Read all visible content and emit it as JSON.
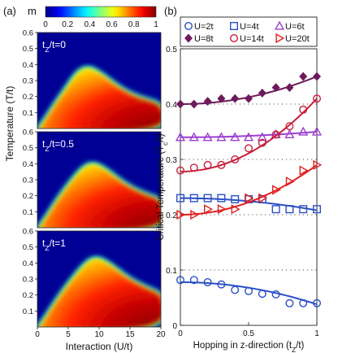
{
  "figure": {
    "panel_a_label": "(a)",
    "panel_b_label": "(b)",
    "colorbar": {
      "label": "m",
      "ticks": [
        "0",
        "0.2",
        "0.4",
        "0.6",
        "0.8",
        "1"
      ],
      "range": [
        0,
        1
      ],
      "colormap": "jet"
    },
    "left_ylabel": "Temperature (T/t)",
    "left_xlabel": "Interaction (U/t)",
    "left_yticks": [
      "0.1",
      "0.2",
      "0.3",
      "0.4",
      "0.5",
      "0.6"
    ],
    "left_xticks": [
      "0",
      "5",
      "10",
      "15",
      "20"
    ],
    "heatmap_panels": [
      {
        "label": "t",
        "sub": "Z",
        "rest": "/t=0",
        "peak_u": 8.2,
        "peak_t": 0.38
      },
      {
        "label": "t",
        "sub": "Z",
        "rest": "/t=0.5",
        "peak_u": 9.0,
        "peak_t": 0.4
      },
      {
        "label": "t",
        "sub": "Z",
        "rest": "/t=1",
        "peak_u": 9.6,
        "peak_t": 0.43
      }
    ]
  },
  "chart_data": {
    "type": "scatter",
    "xlabel_prefix": "Hopping in z-direction (t",
    "xlabel_sub": "Z",
    "xlabel_suffix": "/t)",
    "ylabel_prefix": "Critical Temperature (T",
    "ylabel_sub": "c",
    "ylabel_suffix": "/t)",
    "xlim": [
      0,
      1
    ],
    "ylim": [
      0,
      0.5
    ],
    "xticks": [
      "0",
      "0.5",
      "1"
    ],
    "yticks": [
      "0",
      "0.1",
      "0.2",
      "0.3",
      "0.4",
      "0.5"
    ],
    "grid_dotted_y": [
      0.1,
      0.2,
      0.3,
      0.4
    ],
    "legend_position": "top",
    "series": [
      {
        "name": "U=2t",
        "color": "#2a50c6",
        "marker": "circle",
        "x": [
          0,
          0.1,
          0.2,
          0.3,
          0.4,
          0.5,
          0.6,
          0.7,
          0.8,
          0.9,
          1.0
        ],
        "y": [
          0.082,
          0.082,
          0.078,
          0.074,
          0.064,
          0.062,
          0.057,
          0.056,
          0.04,
          0.04,
          0.04
        ],
        "fit_y0": 0.078,
        "fit_y1": 0.038
      },
      {
        "name": "U=4t",
        "color": "#2a50c6",
        "marker": "square",
        "x": [
          0,
          0.1,
          0.2,
          0.3,
          0.4,
          0.5,
          0.6,
          0.7,
          0.8,
          0.9,
          1.0
        ],
        "y": [
          0.23,
          0.23,
          0.23,
          0.23,
          0.228,
          0.228,
          0.228,
          0.21,
          0.21,
          0.21,
          0.21
        ],
        "fit_y0": 0.23,
        "fit_y1": 0.208
      },
      {
        "name": "U=6t",
        "color": "#9b3fd0",
        "marker": "triangle",
        "x": [
          0,
          0.1,
          0.2,
          0.3,
          0.4,
          0.5,
          0.6,
          0.7,
          0.8,
          0.9,
          1.0
        ],
        "y": [
          0.34,
          0.34,
          0.34,
          0.34,
          0.34,
          0.34,
          0.34,
          0.345,
          0.345,
          0.35,
          0.35
        ],
        "fit_y0": 0.34,
        "fit_y1": 0.35
      },
      {
        "name": "U=8t",
        "color": "#6e1a5c",
        "marker": "diamond",
        "x": [
          0,
          0.1,
          0.2,
          0.3,
          0.4,
          0.5,
          0.6,
          0.7,
          0.8,
          0.9,
          1.0
        ],
        "y": [
          0.4,
          0.4,
          0.405,
          0.41,
          0.41,
          0.41,
          0.42,
          0.43,
          0.43,
          0.45,
          0.45
        ],
        "fit_y0": 0.4,
        "fit_y1": 0.45
      },
      {
        "name": "U=14t",
        "color": "#c81e3a",
        "marker": "circle",
        "x": [
          0,
          0.1,
          0.2,
          0.3,
          0.4,
          0.5,
          0.6,
          0.7,
          0.8,
          0.9,
          1.0
        ],
        "y": [
          0.28,
          0.285,
          0.29,
          0.29,
          0.3,
          0.32,
          0.33,
          0.345,
          0.36,
          0.39,
          0.41
        ],
        "fit_y0": 0.278,
        "fit_y1": 0.41
      },
      {
        "name": "U=20t",
        "color": "#e02020",
        "marker": "triangle-right",
        "x": [
          0,
          0.1,
          0.2,
          0.3,
          0.4,
          0.5,
          0.6,
          0.7,
          0.8,
          0.9,
          1.0
        ],
        "y": [
          0.2,
          0.2,
          0.21,
          0.21,
          0.21,
          0.23,
          0.23,
          0.245,
          0.26,
          0.28,
          0.29
        ],
        "fit_y0": 0.2,
        "fit_y1": 0.29
      }
    ]
  }
}
